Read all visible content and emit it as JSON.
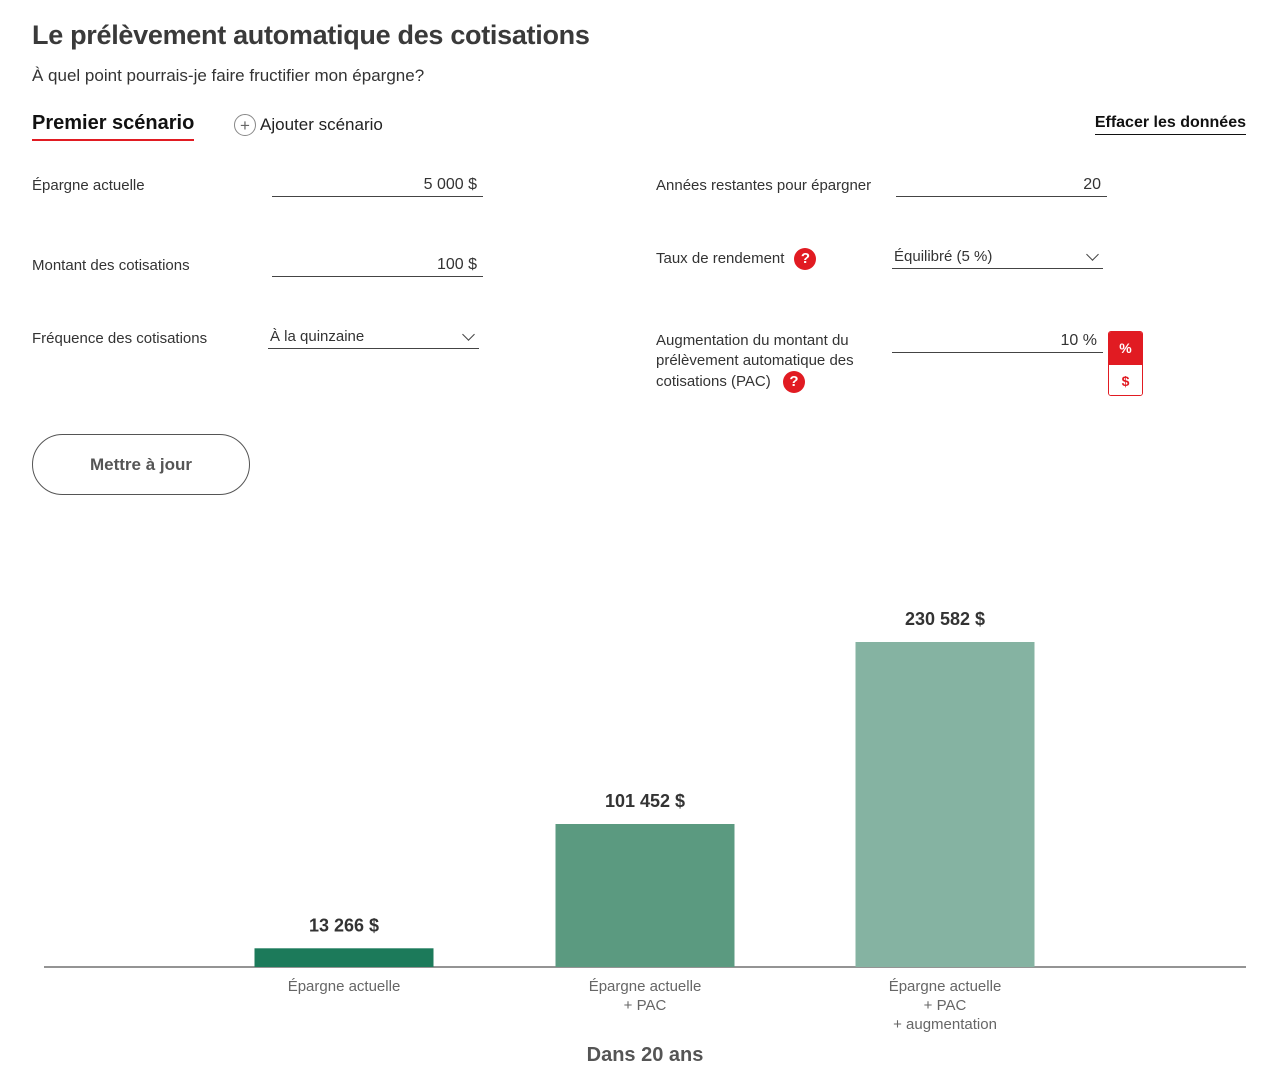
{
  "header": {
    "title": "Le prélèvement automatique des cotisations",
    "subtitle": "À quel point pourrais-je faire fructifier mon épargne?"
  },
  "tabs": {
    "active_label": "Premier scénario",
    "add_label": "Ajouter scénario",
    "add_icon": "plus-circle-icon",
    "clear_label": "Effacer les données"
  },
  "form": {
    "current_savings": {
      "label": "Épargne actuelle",
      "value": "5 000 $"
    },
    "contribution_amount": {
      "label": "Montant des cotisations",
      "value": "100 $"
    },
    "contribution_frequency": {
      "label": "Fréquence des cotisations",
      "value": "À la quinzaine"
    },
    "years_remaining": {
      "label": "Années restantes pour épargner",
      "value": "20"
    },
    "return_rate": {
      "label": "Taux de rendement",
      "value": "Équilibré (5 %)",
      "help": "?"
    },
    "pac_increase": {
      "label": "Augmentation du montant du prélèvement automatique des cotisations (PAC)",
      "value": "10 %",
      "help": "?",
      "unit_percent": "%",
      "unit_dollar": "$",
      "selected_unit": "%"
    },
    "update_label": "Mettre à jour"
  },
  "colors": {
    "accent": "#e11b22",
    "bar_1": "#1c7a5a",
    "bar_2": "#5b9a80",
    "bar_3": "#85b3a2"
  },
  "chart_data": {
    "type": "bar",
    "categories": [
      [
        "Épargne actuelle"
      ],
      [
        "Épargne actuelle",
        "+ PAC"
      ],
      [
        "Épargne actuelle",
        "+ PAC",
        "+ augmentation"
      ]
    ],
    "values": [
      13266,
      101452,
      230582
    ],
    "value_labels": [
      "13 266 $",
      "101 452 $",
      "230 582 $"
    ],
    "xlabel": "Dans 20 ans",
    "ylim": [
      0,
      230582
    ]
  }
}
